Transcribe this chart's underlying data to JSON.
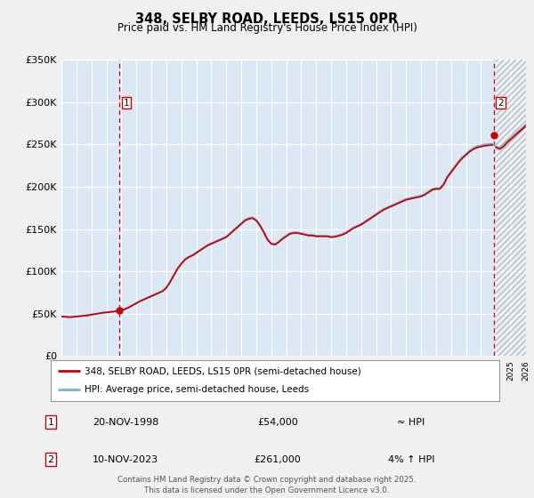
{
  "title_line1": "348, SELBY ROAD, LEEDS, LS15 0PR",
  "title_line2": "Price paid vs. HM Land Registry's House Price Index (HPI)",
  "legend_line1": "348, SELBY ROAD, LEEDS, LS15 0PR (semi-detached house)",
  "legend_line2": "HPI: Average price, semi-detached house, Leeds",
  "annotation1_date": "20-NOV-1998",
  "annotation1_price": "£54,000",
  "annotation1_hpi": "≈ HPI",
  "annotation1_year": 1998.88,
  "annotation1_value": 54000,
  "annotation2_date": "10-NOV-2023",
  "annotation2_price": "£261,000",
  "annotation2_hpi": "4% ↑ HPI",
  "annotation2_year": 2023.86,
  "annotation2_value": 261000,
  "footer": "Contains HM Land Registry data © Crown copyright and database right 2025.\nThis data is licensed under the Open Government Licence v3.0.",
  "fig_bg_color": "#f0f0f0",
  "plot_bg_color": "#dce9f5",
  "line_color_red": "#cc0000",
  "line_color_blue": "#7ab0d4",
  "grid_color": "#ffffff",
  "xmin": 1995,
  "xmax": 2026,
  "ymin": 0,
  "ymax": 350000,
  "yticks": [
    0,
    50000,
    100000,
    150000,
    200000,
    250000,
    300000,
    350000
  ],
  "ytick_labels": [
    "£0",
    "£50K",
    "£100K",
    "£150K",
    "£200K",
    "£250K",
    "£300K",
    "£350K"
  ],
  "xticks": [
    1995,
    1996,
    1997,
    1998,
    1999,
    2000,
    2001,
    2002,
    2003,
    2004,
    2005,
    2006,
    2007,
    2008,
    2009,
    2010,
    2011,
    2012,
    2013,
    2014,
    2015,
    2016,
    2017,
    2018,
    2019,
    2020,
    2021,
    2022,
    2023,
    2024,
    2025,
    2026
  ],
  "hpi_data": [
    [
      1995.0,
      47500
    ],
    [
      1995.25,
      47200
    ],
    [
      1995.5,
      46800
    ],
    [
      1995.75,
      47000
    ],
    [
      1996.0,
      47500
    ],
    [
      1996.25,
      48000
    ],
    [
      1996.5,
      48500
    ],
    [
      1996.75,
      49000
    ],
    [
      1997.0,
      49800
    ],
    [
      1997.25,
      50500
    ],
    [
      1997.5,
      51200
    ],
    [
      1997.75,
      52000
    ],
    [
      1998.0,
      52500
    ],
    [
      1998.25,
      53000
    ],
    [
      1998.5,
      53500
    ],
    [
      1998.75,
      54000
    ],
    [
      1999.0,
      55000
    ],
    [
      1999.25,
      56500
    ],
    [
      1999.5,
      58500
    ],
    [
      1999.75,
      61000
    ],
    [
      2000.0,
      63500
    ],
    [
      2000.25,
      66000
    ],
    [
      2000.5,
      68000
    ],
    [
      2000.75,
      70000
    ],
    [
      2001.0,
      72000
    ],
    [
      2001.25,
      74000
    ],
    [
      2001.5,
      76000
    ],
    [
      2001.75,
      78000
    ],
    [
      2002.0,
      82000
    ],
    [
      2002.25,
      89000
    ],
    [
      2002.5,
      97000
    ],
    [
      2002.75,
      105000
    ],
    [
      2003.0,
      111000
    ],
    [
      2003.25,
      116000
    ],
    [
      2003.5,
      119000
    ],
    [
      2003.75,
      121000
    ],
    [
      2004.0,
      124000
    ],
    [
      2004.25,
      127000
    ],
    [
      2004.5,
      130000
    ],
    [
      2004.75,
      133000
    ],
    [
      2005.0,
      135000
    ],
    [
      2005.25,
      137000
    ],
    [
      2005.5,
      139000
    ],
    [
      2005.75,
      141000
    ],
    [
      2006.0,
      143000
    ],
    [
      2006.25,
      147000
    ],
    [
      2006.5,
      151000
    ],
    [
      2006.75,
      155000
    ],
    [
      2007.0,
      159000
    ],
    [
      2007.25,
      163000
    ],
    [
      2007.5,
      165000
    ],
    [
      2007.75,
      166000
    ],
    [
      2008.0,
      163000
    ],
    [
      2008.25,
      157000
    ],
    [
      2008.5,
      149000
    ],
    [
      2008.75,
      140000
    ],
    [
      2009.0,
      135000
    ],
    [
      2009.25,
      134000
    ],
    [
      2009.5,
      137000
    ],
    [
      2009.75,
      141000
    ],
    [
      2010.0,
      144000
    ],
    [
      2010.25,
      147000
    ],
    [
      2010.5,
      148000
    ],
    [
      2010.75,
      148000
    ],
    [
      2011.0,
      147000
    ],
    [
      2011.25,
      146000
    ],
    [
      2011.5,
      145000
    ],
    [
      2011.75,
      145000
    ],
    [
      2012.0,
      144000
    ],
    [
      2012.25,
      144000
    ],
    [
      2012.5,
      144000
    ],
    [
      2012.75,
      144000
    ],
    [
      2013.0,
      143000
    ],
    [
      2013.25,
      143500
    ],
    [
      2013.5,
      144500
    ],
    [
      2013.75,
      146000
    ],
    [
      2014.0,
      148000
    ],
    [
      2014.25,
      151000
    ],
    [
      2014.5,
      154000
    ],
    [
      2014.75,
      156000
    ],
    [
      2015.0,
      158000
    ],
    [
      2015.25,
      161000
    ],
    [
      2015.5,
      164000
    ],
    [
      2015.75,
      167000
    ],
    [
      2016.0,
      170000
    ],
    [
      2016.25,
      173000
    ],
    [
      2016.5,
      176000
    ],
    [
      2016.75,
      178000
    ],
    [
      2017.0,
      180000
    ],
    [
      2017.25,
      182000
    ],
    [
      2017.5,
      184000
    ],
    [
      2017.75,
      186000
    ],
    [
      2018.0,
      188000
    ],
    [
      2018.25,
      189000
    ],
    [
      2018.5,
      190000
    ],
    [
      2018.75,
      191000
    ],
    [
      2019.0,
      192000
    ],
    [
      2019.25,
      194000
    ],
    [
      2019.5,
      197000
    ],
    [
      2019.75,
      200000
    ],
    [
      2020.0,
      201000
    ],
    [
      2020.25,
      201000
    ],
    [
      2020.5,
      206000
    ],
    [
      2020.75,
      215000
    ],
    [
      2021.0,
      221000
    ],
    [
      2021.25,
      227000
    ],
    [
      2021.5,
      233000
    ],
    [
      2021.75,
      238000
    ],
    [
      2022.0,
      242000
    ],
    [
      2022.25,
      246000
    ],
    [
      2022.5,
      249000
    ],
    [
      2022.75,
      251000
    ],
    [
      2023.0,
      252000
    ],
    [
      2023.25,
      253000
    ],
    [
      2023.5,
      253500
    ],
    [
      2023.75,
      254000
    ],
    [
      2024.0,
      251000
    ],
    [
      2024.25,
      249000
    ],
    [
      2024.5,
      252000
    ],
    [
      2024.75,
      257000
    ],
    [
      2025.0,
      261000
    ],
    [
      2025.25,
      265000
    ],
    [
      2025.5,
      269000
    ],
    [
      2025.75,
      273000
    ],
    [
      2026.0,
      277000
    ]
  ]
}
